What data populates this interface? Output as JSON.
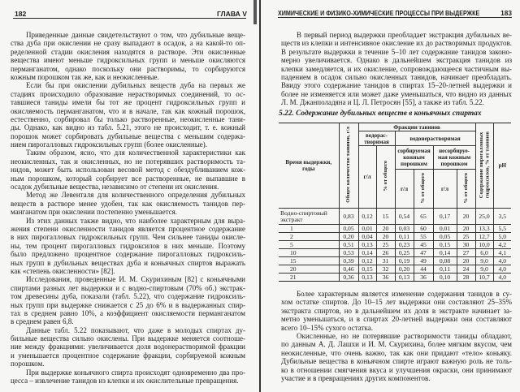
{
  "left_page": {
    "page_number": "182",
    "running_head": "ГЛАВА V",
    "paragraphs": [
      {
        "lines": [
          "Приведенные данные свидетельствуют о том, что дубильные веще-",
          "ства дуба при окислении не сразу выпадают в осадок, а на какой-то оп-",
          "ределенной стадии окисления находятся в растворе. Эти окисленные",
          "вещества имеют меньше гидроксильных групп и меньше окисляются",
          "перманганатом, однако поскольку они растворимы, то сорбируются",
          "кожным порошком так же, как и неокисленные."
        ]
      },
      {
        "lines": [
          "Если бы при окислении дубильных веществ дуба на первых же",
          "стадиях происходило образование нерастворимых соединений, то ос-",
          "тавшиеся таниды имели бы тот же процент гидроксильных групп и",
          "окисляемость перманганатом, что и в начале, так как кожный порошок,",
          "естественно, сорбировал бы только растворенные, неокисленные тани-",
          "ды. Однако, как видно из табл. 5.21, этого не происходит, т. е. кожный",
          "порошок может сорбировать дубильные вещества с меньшим содержа-",
          "нием пирогалловых гидроксильных групп (более окисленные)."
        ]
      },
      {
        "lines": [
          "Таким образом, ясно, что для количественной характеристики как",
          "неокисленных, так и окисленных, но не потерявших растворимость та-",
          "нидов, может быть использован весовой метод с обездубливанием кож-",
          "ным порошком, который сорбирует все растворенные, не выпавшие в",
          "осадок дубильные вещества, независимо от степени их окисления."
        ]
      },
      {
        "lines": [
          "Метод же Левенталя для количественного определения дубильных",
          "веществ в растворе менее удобен, так как окисляемость танидов пер-",
          "манганатом при окислении постепенно уменьшается."
        ]
      },
      {
        "lines": [
          "Из этих данных также видно, что наиболее характерным для выра-",
          "жения степени окисленности танидов является процентное содержание",
          "в них пирогалловых гидроксильных групп. Чем сильнее таниды окисле-",
          "ны, тем процент пирогалловых гидроксилов в них меньше. Поэтому",
          "было предложено процентное содержание пирогалловых гидроксиль-",
          "ных групп в дубильных веществах дуба и коньячных спиртов выражать",
          "как «степень окисленности» [82]."
        ]
      },
      {
        "lines": [
          "Исследования, проведенные И. М. Скурихиным [82] с коньячными",
          "спиртами разных лет выдержки и с водно-спиртовым (70% об.) экстрак-",
          "том древесины дуба, показали (табл. 5.22), что содержание гидроксиль-",
          "ных групп при выдержке снижается с 25 до 6% и в выдержанных спир-",
          "тах в среднем равно 10%, а коэффициент окисляемости перманганатом",
          "в среднем равен 6,8."
        ]
      },
      {
        "lines": [
          "Данные табл. 5.22 показывают, что даже в молодых спиртах ду-",
          "бильные вещества сильно окислены. При выдержке меняется соотноше-",
          "ние между фракциями: увеличивается доля водонерастворимой фракции",
          "и уменьшается процентное содержание фракции, сорбируемой кожным",
          "порошком."
        ]
      },
      {
        "lines": [
          "При выдержке коньячного спирта происходят одновременно два про-",
          "цесса – извлечение танидов из клепки и их окислительные превращения."
        ]
      }
    ]
  },
  "right_page": {
    "page_number": "183",
    "running_head": "ХИМИЧЕСКИЕ И ФИЗИКО-ХИМИЧЕСКИЕ ПРОЦЕССЫ ПРИ ВЫДЕРЖКЕ",
    "top_paragraphs": [
      {
        "lines": [
          "В первый период выдержки преобладает экстракция дубильных ве-",
          "ществ из клепки и интенсивное окисление их до растворимых продуктов.",
          "В результате выдержки в течение 5–10 лет содержание танидов законо-",
          "мерно увеличивается. Однако в дальнейшем экстракция танидов из",
          "клепки замедляется, и их окисление, сопровождающееся частичным вы-",
          "падением в осадок сильно окисленных танидов, начинает преобладать.",
          "Ввиду этого содержание танидов в спиртах 15–20-летней выдержки и",
          "более не изменяется или может даже уменьшаться, что видно из данных",
          "Л. М. Джанполадяна и Ц. Л. Петросян [55], а также из табл. 5.22."
        ]
      }
    ],
    "table": {
      "title": "5.22. Содержание дубильных веществ в коньячных спиртах",
      "headers": {
        "age": "Время выдержки,\nгоды",
        "total": "Общее количество танинов, г/л",
        "fractions": "Фракции танинов",
        "soluble": "водорас-\nтворимая",
        "insoluble": "водонерастворимая",
        "sorbed": "сорбируемая\nкожным\nпорошком",
        "unsorbed": "несорбируе-\nмая кожным\nпорошком",
        "gl": "г/л",
        "pct_total": "% от общего",
        "pyrogallol": "Содержание пирогалловых\nгидроксилов, % от танинов",
        "ph": "pH"
      },
      "rows": [
        [
          "Водно-спиртовый экстракт",
          "0,83",
          "0,12",
          "15",
          "0,54",
          "65",
          "0,17",
          "20",
          "25,0",
          "3,5"
        ],
        [
          "1",
          "0,05",
          "0,01",
          "20",
          "0,03",
          "60",
          "0,01",
          "20",
          "13,3",
          "5,5"
        ],
        [
          "2",
          "0,20",
          "0,04",
          "20",
          "0,11",
          "55",
          "0,05",
          "25",
          "12,7",
          "5,0"
        ],
        [
          "5",
          "0,51",
          "0,13",
          "25",
          "0,23",
          "45",
          "0,15",
          "30",
          "10,0",
          "4,2"
        ],
        [
          "10",
          "0,53",
          "0,14",
          "26",
          "0,25",
          "47",
          "0,14",
          "27",
          "6,0",
          "4,1"
        ],
        [
          "15",
          "0,39",
          "0,12",
          "31",
          "0,19",
          "49",
          "0,08",
          "20",
          "9,0",
          "4,0"
        ],
        [
          "20",
          "0,46",
          "0,15",
          "32",
          "0,20",
          "44",
          "0,11",
          "24",
          "9,0",
          "4,0"
        ],
        [
          "21",
          "0,36",
          "0,13",
          "36",
          "0,13",
          "36",
          "0,10",
          "28",
          "10,7",
          "4,0"
        ]
      ]
    },
    "bottom_paragraphs": [
      {
        "lines": [
          "Более характерным является изменение содержания танидов в су-",
          "хом остатке спиртов. До 10–15 лет выдержки они составляют 25–35%",
          "экстракта спиртов, но в дальнейшем их доля в экстракте начинает за-",
          "метно уменьшаться, и в спиртах 20-летней выдержки они составляют",
          "всего 10–15% сухого остатка."
        ]
      },
      {
        "lines": [
          "Окисленные, но не потерявшие растворимости таниды обладают,",
          "по данным А. Д. Лашхи и И. М. Скурихина, более мягким вкусом, чем",
          "неокисленные, что очень важно, так как они придают «тело» коньяку.",
          "Дубильные вещества в коньячном спирте играют важную роль не толь-",
          "ко в отношении смягчения вкуса и улучшения окраски, они принимают",
          "участие и в превращениях других компонентов."
        ]
      }
    ]
  }
}
